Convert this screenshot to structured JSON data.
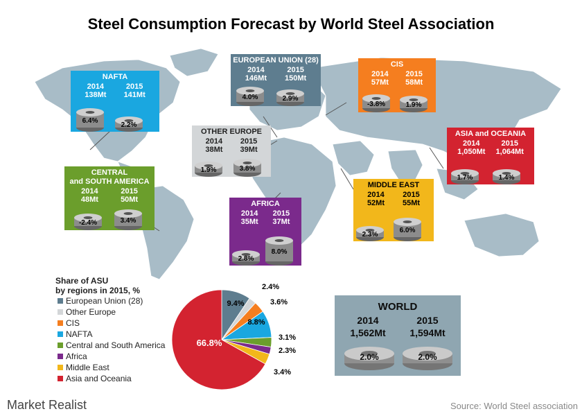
{
  "title": "Steel Consumption Forecast by World Steel Association",
  "colors": {
    "eu": "#5e7d8f",
    "other_europe": "#d3d6d8",
    "cis": "#f57e1f",
    "nafta": "#1aa7e0",
    "csa": "#6b9e2c",
    "africa": "#7b2a8c",
    "middle_east": "#f2b71b",
    "asia": "#d32330",
    "map": "#a8bcc7",
    "world": "#8aa2ad"
  },
  "regions": [
    {
      "key": "nafta",
      "name": "NAFTA",
      "year1": "2014",
      "year2": "2015",
      "val1": "138Mt",
      "val2": "141Mt",
      "g1": "6.4%",
      "g2": "2.2%",
      "color": "#1aa7e0"
    },
    {
      "key": "eu",
      "name": "EUROPEAN UNION (28)",
      "year1": "2014",
      "year2": "2015",
      "val1": "146Mt",
      "val2": "150Mt",
      "g1": "4.0%",
      "g2": "2.9%",
      "color": "#5e7d8f"
    },
    {
      "key": "cis",
      "name": "CIS",
      "year1": "2014",
      "year2": "2015",
      "val1": "57Mt",
      "val2": "58Mt",
      "g1": "-3.8%",
      "g2": "1.9%",
      "color": "#f57e1f"
    },
    {
      "key": "other_europe",
      "name": "OTHER EUROPE",
      "year1": "2014",
      "year2": "2015",
      "val1": "38Mt",
      "val2": "39Mt",
      "g1": "1.9%",
      "g2": "3.8%",
      "color": "#d3d6d8"
    },
    {
      "key": "asia",
      "name": "ASIA and OCEANIA",
      "year1": "2014",
      "year2": "2015",
      "val1": "1,050Mt",
      "val2": "1,064Mt",
      "g1": "1.7%",
      "g2": "1.4%",
      "color": "#d32330"
    },
    {
      "key": "csa",
      "name": "CENTRAL",
      "name2": "and SOUTH AMERICA",
      "year1": "2014",
      "year2": "2015",
      "val1": "48Mt",
      "val2": "50Mt",
      "g1": "-2.4%",
      "g2": "3.4%",
      "color": "#6b9e2c"
    },
    {
      "key": "middle_east",
      "name": "MIDDLE EAST",
      "year1": "2014",
      "year2": "2015",
      "val1": "52Mt",
      "val2": "55Mt",
      "g1": "2.3%",
      "g2": "6.0%",
      "color": "#f2b71b"
    },
    {
      "key": "africa",
      "name": "AFRICA",
      "year1": "2014",
      "year2": "2015",
      "val1": "35Mt",
      "val2": "37Mt",
      "g1": "2.8%",
      "g2": "8.0%",
      "color": "#7b2a8c"
    }
  ],
  "legend": {
    "title1": "Share of ASU",
    "title2": "by regions in 2015, %",
    "items": [
      "European Union (28)",
      "Other Europe",
      "CIS",
      "NAFTA",
      "Central and South America",
      "Africa",
      "Middle East",
      "Asia and Oceania"
    ]
  },
  "world": {
    "title": "WORLD",
    "year1": "2014",
    "year2": "2015",
    "val1": "1,562Mt",
    "val2": "1,594Mt",
    "g1": "2.0%",
    "g2": "2.0%"
  },
  "chart_data": {
    "type": "pie",
    "title": "Share of ASU by regions in 2015, %",
    "categories": [
      "European Union (28)",
      "Other Europe",
      "CIS",
      "NAFTA",
      "Central and South America",
      "Africa",
      "Middle East",
      "Asia and Oceania"
    ],
    "values": [
      9.4,
      2.4,
      3.6,
      8.8,
      3.1,
      2.3,
      3.4,
      66.8
    ],
    "labels": [
      "9.4%",
      "2.4%",
      "3.6%",
      "8.8%",
      "3.1%",
      "2.3%",
      "3.4%",
      "66.8%"
    ],
    "colors": [
      "#5e7d8f",
      "#d3d6d8",
      "#f57e1f",
      "#1aa7e0",
      "#6b9e2c",
      "#7b2a8c",
      "#f2b71b",
      "#d32330"
    ],
    "legend": "left"
  },
  "footer": {
    "brand": "Market Realist",
    "source": "Source: World Steel association"
  }
}
